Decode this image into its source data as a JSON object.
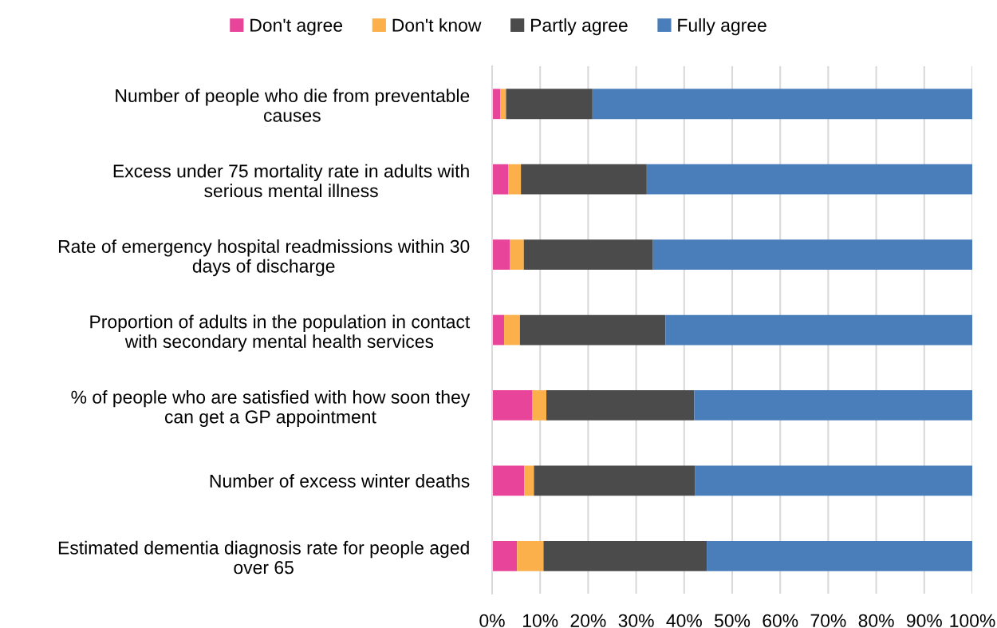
{
  "chart_data": {
    "type": "bar",
    "orientation": "horizontal",
    "stacked": true,
    "categories": [
      "Number of people who die from preventable\ncauses",
      "Excess under 75 mortality rate in adults with\nserious mental illness",
      "Rate of emergency hospital readmissions within 30\ndays of discharge",
      "Proportion of adults in the population in contact\nwith secondary mental health services",
      "% of people who are satisfied with how soon they\ncan get a GP appointment",
      "Number of excess winter deaths",
      "Estimated dementia diagnosis rate for people aged\nover 65"
    ],
    "series": [
      {
        "name": "Don't agree",
        "color": "#e8449a",
        "values": [
          1.7,
          3.4,
          3.7,
          2.5,
          8.4,
          6.7,
          5.2
        ]
      },
      {
        "name": "Don't know",
        "color": "#fbb04b",
        "values": [
          1.2,
          2.6,
          2.9,
          3.3,
          2.9,
          2.0,
          5.5
        ]
      },
      {
        "name": "Partly agree",
        "color": "#4b4b4b",
        "values": [
          18.0,
          26.2,
          26.9,
          30.3,
          30.8,
          33.6,
          34.0
        ]
      },
      {
        "name": "Fully agree",
        "color": "#4a7ebb",
        "values": [
          79.1,
          67.8,
          66.5,
          63.9,
          57.9,
          57.7,
          55.3
        ]
      }
    ],
    "xlim": [
      0,
      100
    ],
    "xticks": [
      {
        "value": 0,
        "label": "0%"
      },
      {
        "value": 10,
        "label": "10%"
      },
      {
        "value": 20,
        "label": "20%"
      },
      {
        "value": 30,
        "label": "30%"
      },
      {
        "value": 40,
        "label": "40%"
      },
      {
        "value": 50,
        "label": "50%"
      },
      {
        "value": 60,
        "label": "60%"
      },
      {
        "value": 70,
        "label": "70%"
      },
      {
        "value": 80,
        "label": "80%"
      },
      {
        "value": 90,
        "label": "90%"
      },
      {
        "value": 100,
        "label": "100%"
      }
    ],
    "grid": "x",
    "legend": "top"
  }
}
